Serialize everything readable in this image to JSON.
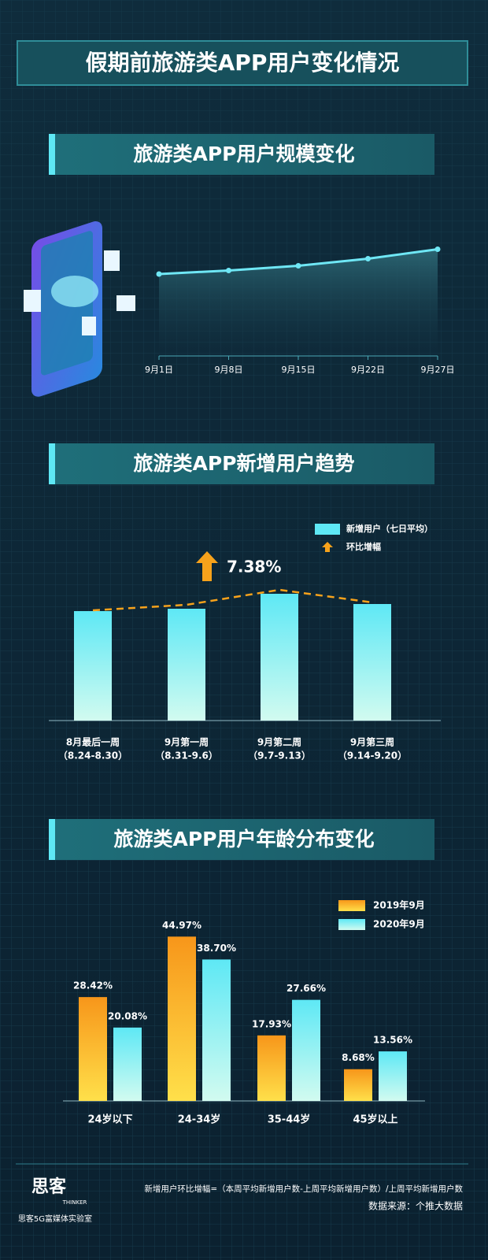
{
  "title": "假期前旅游类APP用户变化情况",
  "chart_data": [
    {
      "type": "line",
      "title": "旅游类APP用户规模变化",
      "categories": [
        "9月1日",
        "9月8日",
        "9月15日",
        "9月22日",
        "9月27日"
      ],
      "values": [
        68,
        71,
        75,
        81,
        89
      ],
      "color": "#6fe7f5",
      "ylim": [
        0,
        100
      ]
    },
    {
      "type": "bar",
      "title": "旅游类APP新增用户趋势",
      "categories": [
        "8月最后一周",
        "9月第一周",
        "9月第二周",
        "9月第三周"
      ],
      "subcategories": [
        "（8.24-8.30）",
        "（8.31-9.6）",
        "（9.7-9.13）",
        "（9.14-9.20）"
      ],
      "series": [
        {
          "name": "新增用户（七日平均）",
          "color": "#5ee8f5",
          "values": [
            69.5,
            71,
            80.5,
            74
          ]
        },
        {
          "name": "环比增幅",
          "color": "#f7a21b",
          "values": [
            70,
            73.5,
            83,
            75
          ]
        }
      ],
      "annotation": "7.38%",
      "ylim": [
        0,
        100
      ]
    },
    {
      "type": "grouped-bar",
      "title": "旅游类APP用户年龄分布变化",
      "categories": [
        "24岁以下",
        "24-34岁",
        "35-44岁",
        "45岁以上"
      ],
      "series": [
        {
          "name": "2019年9月",
          "color": "#f7a21b",
          "values": [
            28.42,
            44.97,
            17.93,
            8.68
          ],
          "value_labels": [
            "28.42%",
            "44.97%",
            "17.93%",
            "8.68%"
          ]
        },
        {
          "name": "2020年9月",
          "color": "#5ee8f5",
          "values": [
            20.08,
            38.7,
            27.66,
            13.56
          ],
          "value_labels": [
            "20.08%",
            "38.70%",
            "27.66%",
            "13.56%"
          ]
        }
      ],
      "ylim": [
        0,
        50
      ]
    }
  ],
  "footer": {
    "note": "新增用户环比增幅=（本周平均新增用户数-上周平均新增用户数）/上周平均新增用户数",
    "source": "数据来源：个推大数据",
    "logo": "思客",
    "logo_sub": "THINKER",
    "org": "思客5G富媒体实验室"
  }
}
